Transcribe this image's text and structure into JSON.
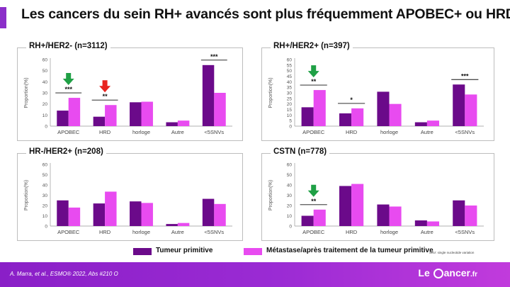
{
  "title": "Les cancers du sein RH+ avancés sont plus fréquemment APOBEC+ ou HRD+",
  "legend": {
    "primary": "Tumeur primitive",
    "metastasis": "Métastase/après traitement de la tumeur primitive"
  },
  "footnote": "SNV: single nucleotide variation",
  "footer": {
    "citation": "A. Marra, et al., ESMO® 2022, Abs #210 O",
    "logo_text_1": "Le",
    "logo_text_2": "ancer",
    "logo_text_3": ".fr"
  },
  "colors": {
    "primary": "#6B0A8A",
    "metastasis": "#E84BF0",
    "green_arrow": "#1FA045",
    "red_arrow": "#E8231F",
    "footer": "#9B2BD4"
  },
  "chart_data": [
    {
      "type": "bar",
      "title": "RH+/HER2- (n=3112)",
      "ylabel": "Proportion(%)",
      "ylim": [
        0,
        60
      ],
      "yticks": [
        "0",
        "10",
        "20",
        "30",
        "40",
        "50",
        "60"
      ],
      "categories": [
        "APOBEC",
        "HRD",
        "horloge",
        "Autre",
        "<5SNVs"
      ],
      "series": [
        {
          "name": "Tumeur primitive",
          "values": [
            14,
            8.5,
            21.5,
            3.5,
            55
          ]
        },
        {
          "name": "Métastase/après traitement de la tumeur primitive",
          "values": [
            25.5,
            19,
            22,
            5,
            30
          ]
        }
      ],
      "significance": [
        "***",
        "**",
        "",
        "",
        "***"
      ],
      "arrows": [
        {
          "category": "APOBEC",
          "color": "green",
          "direction": "down"
        },
        {
          "category": "HRD",
          "color": "red",
          "direction": "down"
        }
      ]
    },
    {
      "type": "bar",
      "title": "RH+/HER2+ (n=397)",
      "ylabel": "Proportion(%)",
      "ylim": [
        0,
        60
      ],
      "yticks": [
        "0",
        "5",
        "10",
        "15",
        "20",
        "25",
        "30",
        "35",
        "40",
        "45",
        "50",
        "55",
        "60"
      ],
      "categories": [
        "APOBEC",
        "HRD",
        "horloge",
        "Autre",
        "<5SNVs"
      ],
      "series": [
        {
          "name": "Tumeur primitive",
          "values": [
            17,
            11.5,
            31,
            3.5,
            37.5
          ]
        },
        {
          "name": "Métastase/après traitement de la tumeur primitive",
          "values": [
            32.5,
            16,
            20,
            5,
            28.5
          ]
        }
      ],
      "significance": [
        "**",
        "*",
        "",
        "",
        "***"
      ],
      "arrows": [
        {
          "category": "APOBEC",
          "color": "green",
          "direction": "down"
        }
      ]
    },
    {
      "type": "bar",
      "title": "HR-/HER2+ (n=208)",
      "ylabel": "Proportion(%)",
      "ylim": [
        0,
        60
      ],
      "yticks": [
        "0",
        "10",
        "20",
        "30",
        "40",
        "50",
        "60"
      ],
      "categories": [
        "APOBEC",
        "HRD",
        "horloge",
        "Autre",
        "<5SNVs"
      ],
      "series": [
        {
          "name": "Tumeur primitive",
          "values": [
            25,
            22,
            24,
            2,
            26.5
          ]
        },
        {
          "name": "Métastase/après traitement de la tumeur primitive",
          "values": [
            18,
            33.5,
            22.5,
            3,
            21.5
          ]
        }
      ],
      "significance": [
        "",
        "",
        "",
        "",
        ""
      ],
      "arrows": []
    },
    {
      "type": "bar",
      "title": "CSTN (n=778)",
      "ylabel": "Proportion(%)",
      "ylim": [
        0,
        60
      ],
      "yticks": [
        "0",
        "10",
        "20",
        "30",
        "40",
        "50",
        "60"
      ],
      "categories": [
        "APOBEC",
        "HRD",
        "horloge",
        "Autre",
        "<5SNVs"
      ],
      "series": [
        {
          "name": "Tumeur primitive",
          "values": [
            10,
            39,
            21,
            5.5,
            25
          ]
        },
        {
          "name": "Métastase/après traitement de la tumeur primitive",
          "values": [
            16,
            41,
            19,
            4.5,
            20
          ]
        }
      ],
      "significance": [
        "**",
        "",
        "",
        "",
        ""
      ],
      "arrows": [
        {
          "category": "APOBEC",
          "color": "green",
          "direction": "down"
        }
      ]
    }
  ]
}
